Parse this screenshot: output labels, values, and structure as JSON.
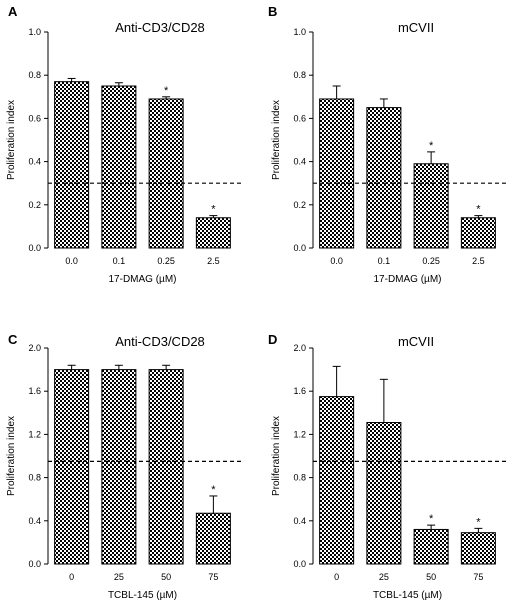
{
  "chart_data": [
    {
      "panel": "A",
      "type": "bar",
      "title": "Anti-CD3/CD28",
      "xlabel": "17-DMAG (µM)",
      "ylabel": "Proliferation index",
      "categories": [
        "0.0",
        "0.1",
        "0.25",
        "2.5"
      ],
      "values": [
        0.77,
        0.75,
        0.69,
        0.14
      ],
      "errors": [
        0.015,
        0.015,
        0.01,
        0.01
      ],
      "significant": [
        false,
        false,
        true,
        true
      ],
      "star_symbol": "*",
      "ylim": [
        0,
        1.0
      ],
      "yticks": [
        "0.0",
        "0.2",
        "0.4",
        "0.6",
        "0.8",
        "1.0"
      ],
      "threshold": 0.3
    },
    {
      "panel": "B",
      "type": "bar",
      "title": "mCVII",
      "xlabel": "17-DMAG (µM)",
      "ylabel": "Proliferation index",
      "categories": [
        "0.0",
        "0.1",
        "0.25",
        "2.5"
      ],
      "values": [
        0.69,
        0.65,
        0.39,
        0.14
      ],
      "errors": [
        0.06,
        0.04,
        0.055,
        0.01
      ],
      "significant": [
        false,
        false,
        true,
        true
      ],
      "star_symbol": "*",
      "ylim": [
        0,
        1.0
      ],
      "yticks": [
        "0.0",
        "0.2",
        "0.4",
        "0.6",
        "0.8",
        "1.0"
      ],
      "threshold": 0.3
    },
    {
      "panel": "C",
      "type": "bar",
      "title": "Anti-CD3/CD28",
      "xlabel": "TCBL-145 (µM)",
      "ylabel": "Proliferation index",
      "categories": [
        "0",
        "25",
        "50",
        "75"
      ],
      "values": [
        1.8,
        1.8,
        1.8,
        0.47
      ],
      "errors": [
        0.04,
        0.04,
        0.04,
        0.16
      ],
      "significant": [
        false,
        false,
        false,
        true
      ],
      "star_symbol": "*",
      "ylim": [
        0,
        2.0
      ],
      "yticks": [
        "0.0",
        "0.4",
        "0.8",
        "1.2",
        "1.6",
        "2.0"
      ],
      "threshold": 0.95
    },
    {
      "panel": "D",
      "type": "bar",
      "title": "mCVII",
      "xlabel": "TCBL-145 (µM)",
      "ylabel": "Proliferation index",
      "categories": [
        "0",
        "25",
        "50",
        "75"
      ],
      "values": [
        1.55,
        1.31,
        0.32,
        0.29
      ],
      "errors": [
        0.28,
        0.4,
        0.04,
        0.04
      ],
      "significant": [
        false,
        false,
        true,
        true
      ],
      "star_symbol": "*",
      "ylim": [
        0,
        2.0
      ],
      "yticks": [
        "0.0",
        "0.4",
        "0.8",
        "1.2",
        "1.6",
        "2.0"
      ],
      "threshold": 0.95
    }
  ]
}
